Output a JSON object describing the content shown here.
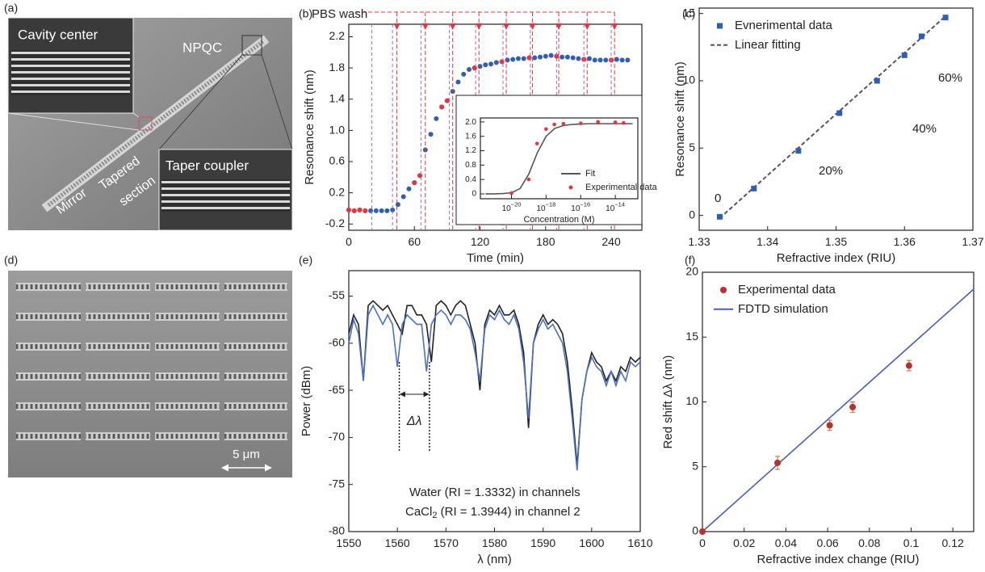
{
  "micrographs": [
    {
      "label": "(a)",
      "texts": [
        "Cavity center",
        "NPQC",
        "Taper coupler",
        "Mirror",
        "Tapered",
        "section"
      ]
    },
    {
      "label": "(d)",
      "scale_bar": "5 μm"
    }
  ],
  "chart_data": [
    {
      "type": "scatter",
      "panel_label": "(b)",
      "annotation": "PBS wash",
      "xlabel": "Time (min)",
      "ylabel": "Resonance shift (nm)",
      "xlim": [
        0,
        268
      ],
      "ylim": [
        -0.28,
        2.36
      ],
      "xticks": [
        0,
        60,
        120,
        180,
        240
      ],
      "yticks": [
        -0.2,
        0.2,
        0.6,
        {
          "value": 1,
          "label": "1.0"
        },
        1.4,
        1.8,
        2.2
      ],
      "wash_times": [
        44,
        70,
        95,
        119,
        144,
        168,
        192,
        218,
        243
      ],
      "wash_color": "#e8343a",
      "injection_times": [
        21,
        40,
        66,
        92,
        116,
        141,
        166,
        190,
        215,
        240
      ],
      "injection_color": "#9a6cc8",
      "series": [
        {
          "kind": "points",
          "color": "#2f5fb3",
          "x": [
            0,
            5,
            10,
            15,
            20,
            25,
            30,
            35,
            40,
            45,
            50,
            55,
            60,
            65,
            70,
            75,
            80,
            85,
            90,
            95,
            100,
            105,
            110,
            115,
            120,
            125,
            130,
            135,
            140,
            145,
            150,
            155,
            160,
            165,
            170,
            175,
            180,
            185,
            190,
            195,
            200,
            205,
            210,
            215,
            220,
            225,
            230,
            235,
            240,
            245,
            250,
            255
          ],
          "values": [
            -0.02,
            -0.03,
            -0.02,
            -0.03,
            -0.03,
            -0.03,
            -0.03,
            -0.03,
            -0.02,
            0.05,
            0.15,
            0.25,
            0.33,
            0.42,
            0.75,
            0.95,
            1.15,
            1.3,
            1.38,
            1.5,
            1.62,
            1.72,
            1.78,
            1.8,
            1.82,
            1.84,
            1.85,
            1.87,
            1.88,
            1.9,
            1.91,
            1.92,
            1.92,
            1.93,
            1.93,
            1.94,
            1.95,
            1.96,
            1.95,
            1.94,
            1.94,
            1.93,
            1.92,
            1.91,
            1.92,
            1.9,
            1.9,
            1.9,
            1.9,
            1.91,
            1.9,
            1.9
          ]
        },
        {
          "kind": "points",
          "color": "#e8343a",
          "x": [
            0,
            5,
            10,
            15,
            60,
            65,
            85,
            90,
            115,
            140,
            165,
            190,
            215,
            240
          ],
          "values": [
            -0.02,
            -0.03,
            -0.02,
            -0.03,
            0.33,
            0.42,
            1.3,
            1.38,
            1.8,
            1.88,
            1.93,
            1.95,
            1.91,
            1.9
          ]
        }
      ],
      "inset": {
        "type": "scatter",
        "xlabel": "Concentration (M)",
        "xlog": true,
        "xlim": [
          1.6e-22,
          2e-13
        ],
        "ylim": [
          -0.135,
          2.11
        ],
        "xticks": [
          {
            "value": 1e-20,
            "label": "10",
            "exponent": "−20"
          },
          {
            "value": 1e-18,
            "label": "10",
            "exponent": "−18"
          },
          {
            "value": 1e-16,
            "label": "10",
            "exponent": "−16"
          },
          {
            "value": 1e-14,
            "label": "10",
            "exponent": "−14"
          }
        ],
        "yticks": [
          0,
          0.4,
          0.8,
          1.2,
          1.6,
          {
            "value": 2,
            "label": "2.0"
          }
        ],
        "legend": "lower right",
        "series": [
          {
            "name": "Fit",
            "kind": "line",
            "color": "#555555",
            "x": [
              3.16e-22,
              1e-21,
              3.16e-21,
              1e-20,
              3.16e-20,
              1e-19,
              3.16e-19,
              1e-18,
              3.16e-18,
              1e-17,
              3.16e-17,
              1e-16,
              3.16e-16,
              1e-15,
              3.16e-15,
              1e-14,
              3.16e-14,
              1e-13
            ],
            "values": [
              0,
              0,
              0.01,
              0.03,
              0.15,
              0.55,
              1.15,
              1.6,
              1.82,
              1.9,
              1.93,
              1.94,
              1.95,
              1.95,
              1.95,
              1.95,
              1.95,
              1.95
            ]
          },
          {
            "name": "Experimental data",
            "kind": "points",
            "color": "#e8343a",
            "x": [
              1e-20,
              1e-19,
              3e-19,
              1e-18,
              3e-18,
              1e-17,
              1e-16,
              1e-15,
              1e-14,
              3e-14
            ],
            "values": [
              0.02,
              0.4,
              1.4,
              1.8,
              1.93,
              1.95,
              1.96,
              2.0,
              1.99,
              1.97
            ]
          }
        ]
      }
    },
    {
      "type": "scatter",
      "panel_label": "(c)",
      "xlabel": "Refractive index (RIU)",
      "ylabel": "Resonance shift (nm)",
      "xlim": [
        1.33,
        1.37
      ],
      "ylim": [
        -1.1,
        15.4
      ],
      "xticks": [
        1.33,
        1.34,
        1.35,
        1.36,
        1.37
      ],
      "yticks": [
        0,
        5,
        10,
        15
      ],
      "legend": "upper left",
      "annotations": [
        "0",
        "20%",
        "40%",
        "60%"
      ],
      "series": [
        {
          "name": "Evnerimental data",
          "kind": "points",
          "marker": "square",
          "color": "#2f5fb3",
          "x": [
            1.333,
            1.338,
            1.3445,
            1.3505,
            1.356,
            1.36,
            1.3625,
            1.366
          ],
          "values": [
            -0.1,
            2.0,
            4.8,
            7.6,
            10.0,
            11.9,
            13.3,
            14.7
          ]
        },
        {
          "name": "Linear fitting",
          "kind": "line",
          "dash": true,
          "color": "#555555",
          "x": [
            1.333,
            1.366
          ],
          "values": [
            -0.2,
            14.8
          ]
        }
      ]
    },
    {
      "type": "line",
      "panel_label": "(e)",
      "xlabel": "λ (nm)",
      "ylabel": "Power (dBm)",
      "xlim": [
        1550,
        1610
      ],
      "ylim": [
        -80,
        -52.3
      ],
      "xticks": [
        1550,
        1560,
        1570,
        1580,
        1590,
        1600,
        1610
      ],
      "yticks": [
        -80,
        -75,
        -70,
        -65,
        -60,
        -55
      ],
      "delta_label": "Δλ",
      "delta_markers": [
        1560.4,
        1566.6
      ],
      "note1": "Water (RI = 1.3332) in channels",
      "note2": {
        "text": "CaCl",
        "sub": "2",
        "rest": " (RI = 1.3944) in channel 2"
      },
      "x": [
        1550,
        1551,
        1552,
        1553,
        1554,
        1555,
        1556,
        1557,
        1558,
        1559,
        1560,
        1561,
        1562,
        1563,
        1564,
        1565,
        1566,
        1567,
        1568,
        1569,
        1570,
        1571,
        1572,
        1573,
        1574,
        1575,
        1576,
        1577,
        1578,
        1579,
        1580,
        1581,
        1582,
        1583,
        1584,
        1585,
        1586,
        1587,
        1588,
        1589,
        1590,
        1591,
        1592,
        1593,
        1594,
        1595,
        1596,
        1597,
        1598,
        1599,
        1600,
        1601,
        1602,
        1603,
        1604,
        1605,
        1606,
        1607,
        1608,
        1609,
        1610
      ],
      "series": [
        {
          "kind": "line",
          "color": "#222222",
          "values": [
            -59,
            -57,
            -58,
            -64,
            -56,
            -55.5,
            -56,
            -56.5,
            -56,
            -57,
            -58,
            -59,
            -56,
            -56,
            -57,
            -57,
            -58,
            -62,
            -56,
            -55.5,
            -56,
            -57,
            -56,
            -55.5,
            -56,
            -58,
            -60,
            -65,
            -58,
            -56.5,
            -57,
            -56,
            -57,
            -57,
            -56.5,
            -58,
            -61,
            -69,
            -60,
            -58,
            -57,
            -58,
            -57.5,
            -58,
            -59,
            -62,
            -67,
            -73,
            -66,
            -63,
            -61,
            -62,
            -62.5,
            -64,
            -63,
            -64,
            -62.5,
            -63,
            -61.5,
            -62,
            -61.5
          ]
        },
        {
          "kind": "line",
          "color": "#4a6fc4",
          "values": [
            -60,
            -57.5,
            -59,
            -64,
            -57,
            -56,
            -57,
            -58,
            -57,
            -58,
            -62.5,
            -58,
            -57,
            -57.5,
            -58,
            -58,
            -63,
            -58,
            -57,
            -56.5,
            -57,
            -58,
            -57,
            -57,
            -57.5,
            -58.5,
            -61,
            -64,
            -58.5,
            -57,
            -57.5,
            -56.5,
            -57.5,
            -58,
            -57,
            -58.5,
            -62,
            -68,
            -60,
            -58.5,
            -57.5,
            -58.5,
            -58,
            -59,
            -60,
            -63,
            -68,
            -73.5,
            -66,
            -63,
            -61.5,
            -62.5,
            -63,
            -64.5,
            -63,
            -64.5,
            -63,
            -64,
            -62,
            -62.5,
            -62
          ]
        }
      ]
    },
    {
      "type": "scatter",
      "panel_label": "(f)",
      "xlabel": "Refractive index change (RIU)",
      "ylabel": "Red shift Δλ (nm)",
      "xlim": [
        0,
        0.13
      ],
      "ylim": [
        0,
        20
      ],
      "xticks": [
        0,
        0.02,
        0.04,
        0.06,
        0.08,
        0.1,
        0.12
      ],
      "yticks": [
        0,
        5,
        10,
        15,
        20
      ],
      "legend": "upper left",
      "error_color": "#c8642a",
      "series": [
        {
          "name": "Experimental data",
          "kind": "points",
          "color": "#b83030",
          "x": [
            0,
            0.036,
            0.061,
            0.072,
            0.099
          ],
          "values": [
            0,
            5.3,
            8.2,
            9.6,
            12.8
          ],
          "errors": [
            0,
            0.5,
            0.4,
            0.4,
            0.4
          ]
        },
        {
          "name": "FDTD simulation",
          "kind": "line",
          "color": "#4a5cc0",
          "x": [
            0,
            0.13
          ],
          "values": [
            0,
            18.7
          ]
        }
      ]
    }
  ]
}
